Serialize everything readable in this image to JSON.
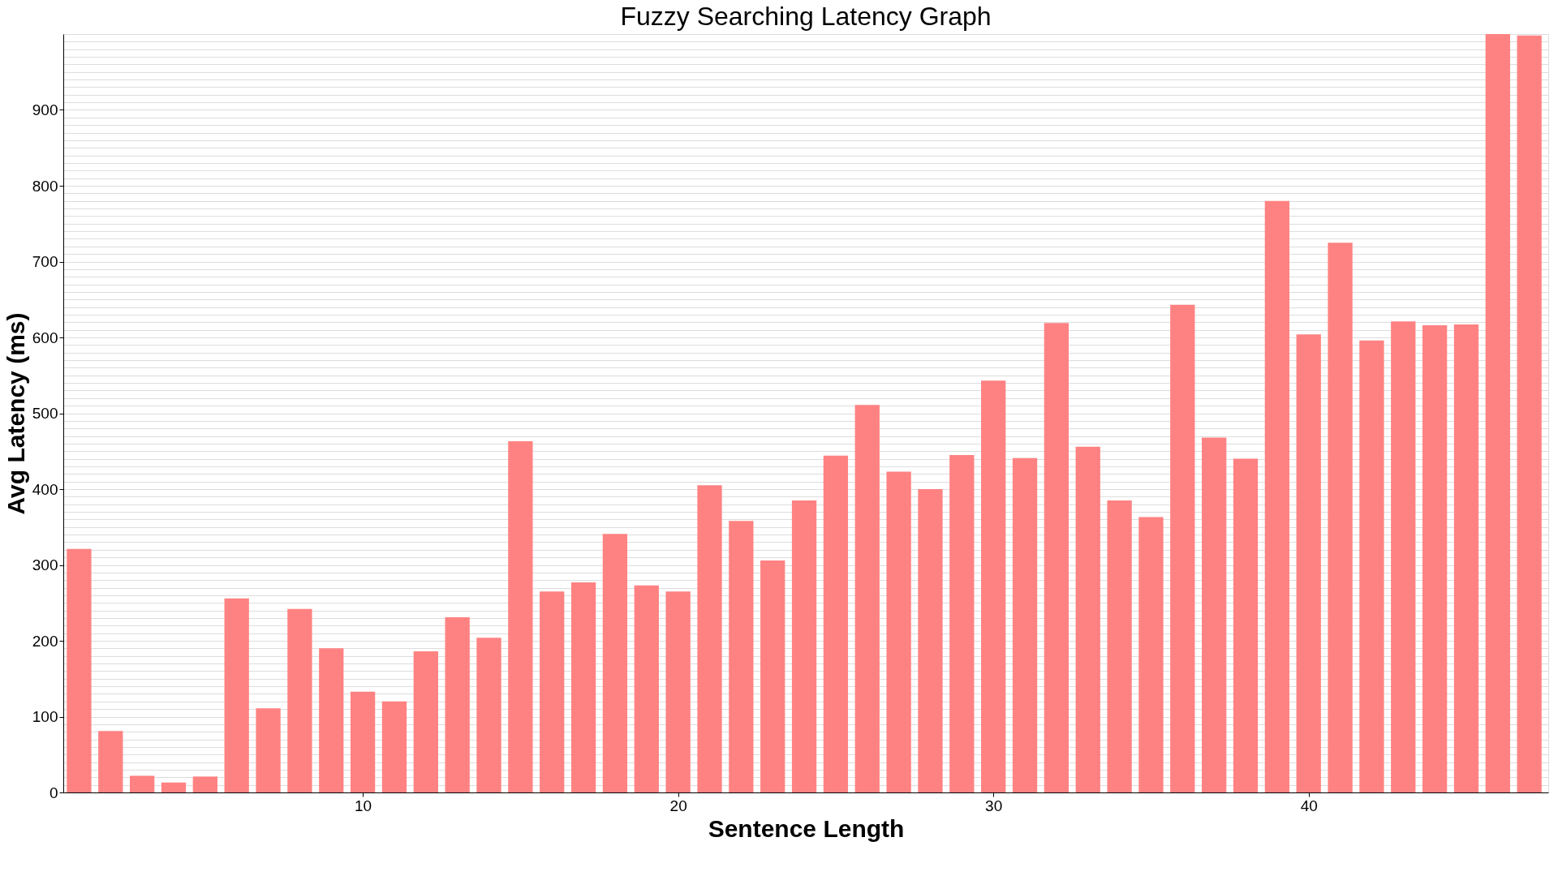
{
  "chart_data": {
    "type": "bar",
    "title": "Fuzzy Searching Latency Graph",
    "xlabel": "Sentence Length",
    "ylabel": "Avg Latency (ms)",
    "x": [
      1,
      2,
      3,
      4,
      5,
      6,
      7,
      8,
      9,
      10,
      11,
      12,
      13,
      14,
      15,
      16,
      17,
      18,
      19,
      20,
      21,
      22,
      23,
      24,
      25,
      26,
      27,
      28,
      29,
      30,
      31,
      32,
      33,
      34,
      35,
      36,
      37,
      38,
      39,
      40,
      41,
      42,
      43,
      44,
      45,
      46,
      47
    ],
    "values": [
      321,
      81,
      22,
      13,
      21,
      256,
      111,
      242,
      190,
      133,
      120,
      186,
      231,
      204,
      463,
      265,
      277,
      341,
      273,
      265,
      405,
      358,
      306,
      385,
      444,
      511,
      423,
      400,
      445,
      543,
      441,
      619,
      456,
      385,
      363,
      643,
      468,
      440,
      780,
      604,
      725,
      596,
      621,
      616,
      617,
      1000,
      998
    ],
    "color": "#ff7f7f",
    "xlim": [
      0.5,
      47.6
    ],
    "xticks": [
      10,
      20,
      30,
      40
    ],
    "ylim": [
      0,
      1000
    ],
    "yticks": [
      0,
      100,
      200,
      300,
      400,
      500,
      600,
      700,
      800,
      900
    ],
    "grid": "y"
  }
}
